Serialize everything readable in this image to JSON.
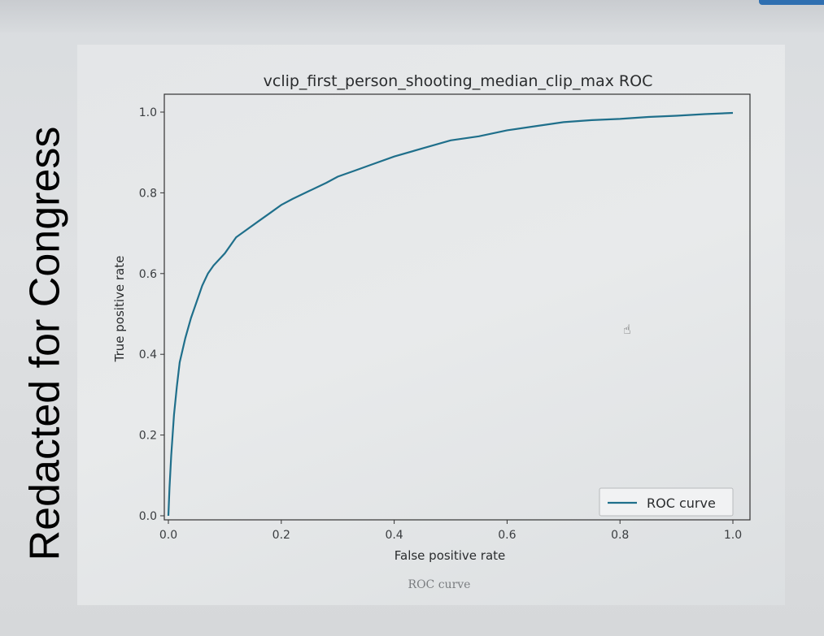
{
  "chart_data": {
    "type": "line",
    "title": "vclip_first_person_shooting_median_clip_max ROC",
    "xlabel": "False positive rate",
    "ylabel": "True positive rate",
    "xlim": [
      0,
      1
    ],
    "ylim": [
      0,
      1.05
    ],
    "x_ticks": [
      "0.0",
      "0.2",
      "0.4",
      "0.6",
      "0.8",
      "1.0"
    ],
    "y_ticks": [
      "0.0",
      "0.2",
      "0.4",
      "0.6",
      "0.8",
      "1.0"
    ],
    "grid": false,
    "legend_position": "lower-right",
    "series": [
      {
        "name": "ROC curve",
        "color": "#1f6f8b",
        "x": [
          0.0,
          0.002,
          0.005,
          0.01,
          0.015,
          0.02,
          0.03,
          0.04,
          0.05,
          0.06,
          0.07,
          0.08,
          0.1,
          0.12,
          0.14,
          0.16,
          0.18,
          0.2,
          0.22,
          0.25,
          0.28,
          0.3,
          0.33,
          0.36,
          0.4,
          0.45,
          0.5,
          0.55,
          0.6,
          0.65,
          0.7,
          0.75,
          0.8,
          0.85,
          0.9,
          0.95,
          1.0
        ],
        "y": [
          0.0,
          0.07,
          0.15,
          0.25,
          0.32,
          0.38,
          0.44,
          0.49,
          0.53,
          0.57,
          0.6,
          0.62,
          0.65,
          0.69,
          0.71,
          0.73,
          0.75,
          0.77,
          0.785,
          0.805,
          0.825,
          0.84,
          0.855,
          0.87,
          0.89,
          0.91,
          0.93,
          0.94,
          0.955,
          0.965,
          0.975,
          0.98,
          0.983,
          0.988,
          0.991,
          0.995,
          0.998
        ]
      }
    ]
  },
  "overlay_text": "Redacted for Congress",
  "caption": "ROC curve",
  "colors": {
    "line": "#1f6f8b",
    "axes": "#333333",
    "tick_text": "#3a3d40"
  },
  "cursor_icon": "hand-pointer-icon"
}
